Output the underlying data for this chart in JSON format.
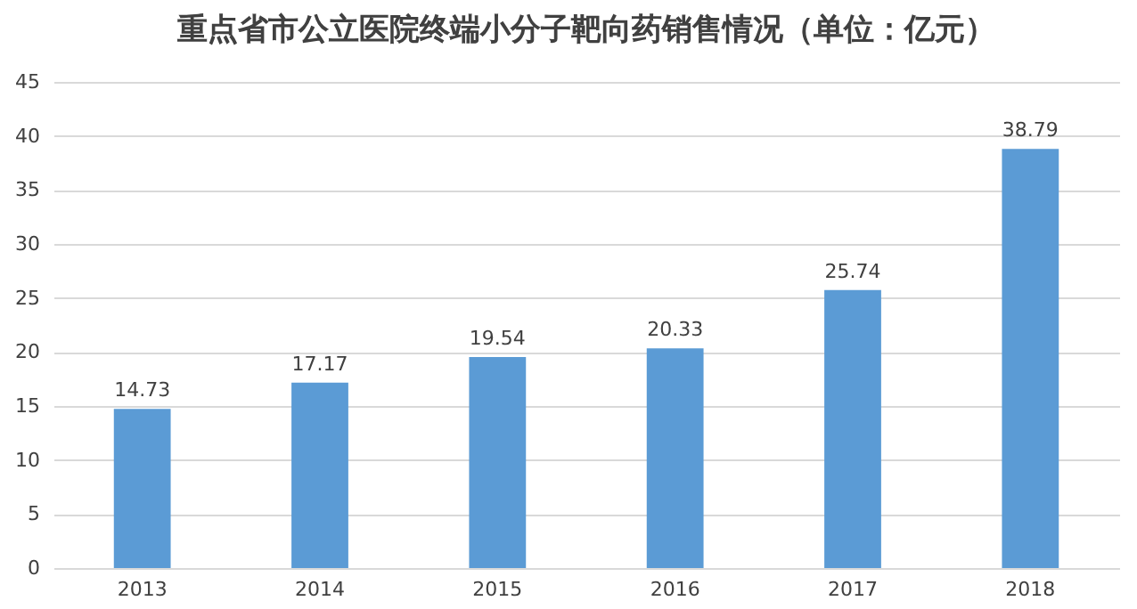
{
  "chart_data": {
    "type": "bar",
    "title": "重点省市公立医院终端小分子靶向药销售情况（单位：亿元）",
    "categories": [
      "2013",
      "2014",
      "2015",
      "2016",
      "2017",
      "2018"
    ],
    "values": [
      14.73,
      17.17,
      19.54,
      20.33,
      25.74,
      38.79
    ],
    "color": "#5b9bd5",
    "ylim": [
      0,
      45
    ],
    "yticks": [
      0,
      5,
      10,
      15,
      20,
      25,
      30,
      35,
      40,
      45
    ],
    "grid": "y",
    "data_labels": true
  }
}
